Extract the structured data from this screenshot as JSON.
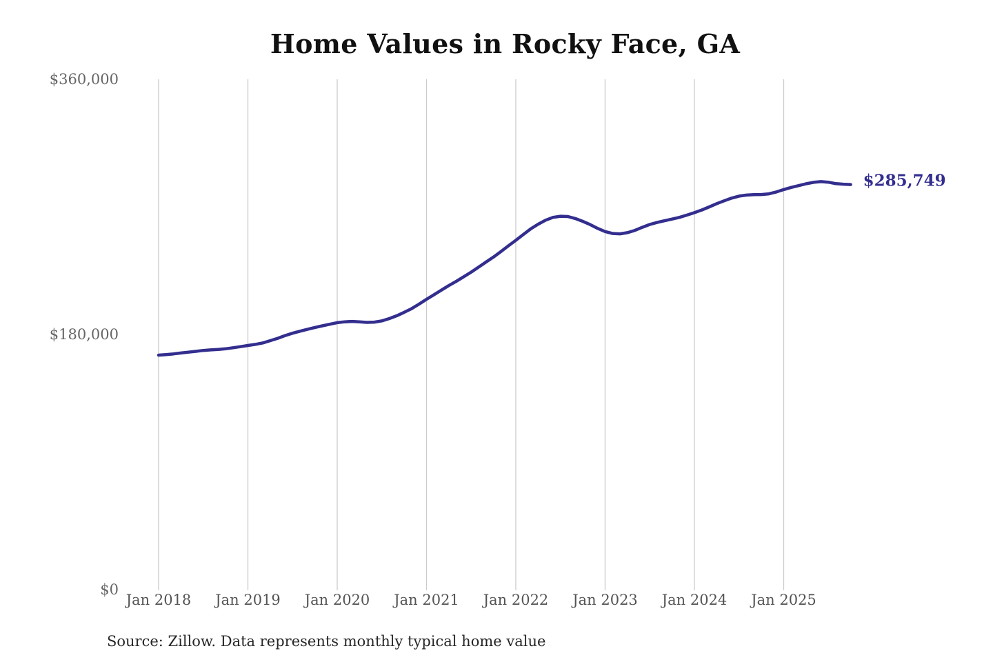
{
  "title": "Home Values in Rocky Face, GA",
  "source_note": "Source: Zillow. Data represents monthly typical home value",
  "latest_value_label": "$285,749",
  "colors": {
    "line": "#332e8e",
    "grid": "#cbcbcb",
    "x_tick_text": "#545454",
    "y_tick_text": "#666666",
    "title_text": "#111111",
    "source_text": "#262626",
    "end_label_text": "#332e8e",
    "background": "#ffffff"
  },
  "chart_data": {
    "type": "line",
    "title": "Home Values in Rocky Face, GA",
    "xlabel": "",
    "ylabel": "",
    "ylim": [
      0,
      360000
    ],
    "grid": "vertical-only",
    "legend": "none",
    "x_ticks": [
      "Jan 2018",
      "Jan 2019",
      "Jan 2020",
      "Jan 2021",
      "Jan 2022",
      "Jan 2023",
      "Jan 2024",
      "Jan 2025"
    ],
    "y_ticks": [
      {
        "label": "$0",
        "value": 0
      },
      {
        "label": "$180,000",
        "value": 180000
      },
      {
        "label": "$360,000",
        "value": 360000
      }
    ],
    "points_start": "Jan 2018",
    "points_interval": "monthly",
    "points_end": "Oct 2025",
    "latest_value": 285749,
    "series": [
      {
        "name": "Typical home value",
        "values": [
          165400,
          165800,
          166300,
          166900,
          167500,
          168100,
          168700,
          169100,
          169400,
          169900,
          170600,
          171400,
          172200,
          173000,
          174000,
          175600,
          177300,
          179200,
          180900,
          182300,
          183600,
          184900,
          186100,
          187200,
          188300,
          188900,
          189200,
          188900,
          188500,
          188700,
          189600,
          191200,
          193200,
          195600,
          198200,
          201400,
          204800,
          208000,
          211300,
          214500,
          217500,
          220700,
          224000,
          227500,
          231100,
          234600,
          238500,
          242500,
          246400,
          250500,
          254500,
          257800,
          260600,
          262600,
          263400,
          263200,
          261800,
          259800,
          257500,
          254800,
          252600,
          251200,
          251000,
          251800,
          253400,
          255600,
          257600,
          259000,
          260200,
          261400,
          262600,
          264200,
          265900,
          267800,
          270000,
          272300,
          274300,
          276200,
          277600,
          278300,
          278600,
          278700,
          279200,
          280500,
          282200,
          283700,
          285000,
          286300,
          287300,
          287800,
          287400,
          286400,
          286000,
          285749
        ]
      }
    ]
  }
}
